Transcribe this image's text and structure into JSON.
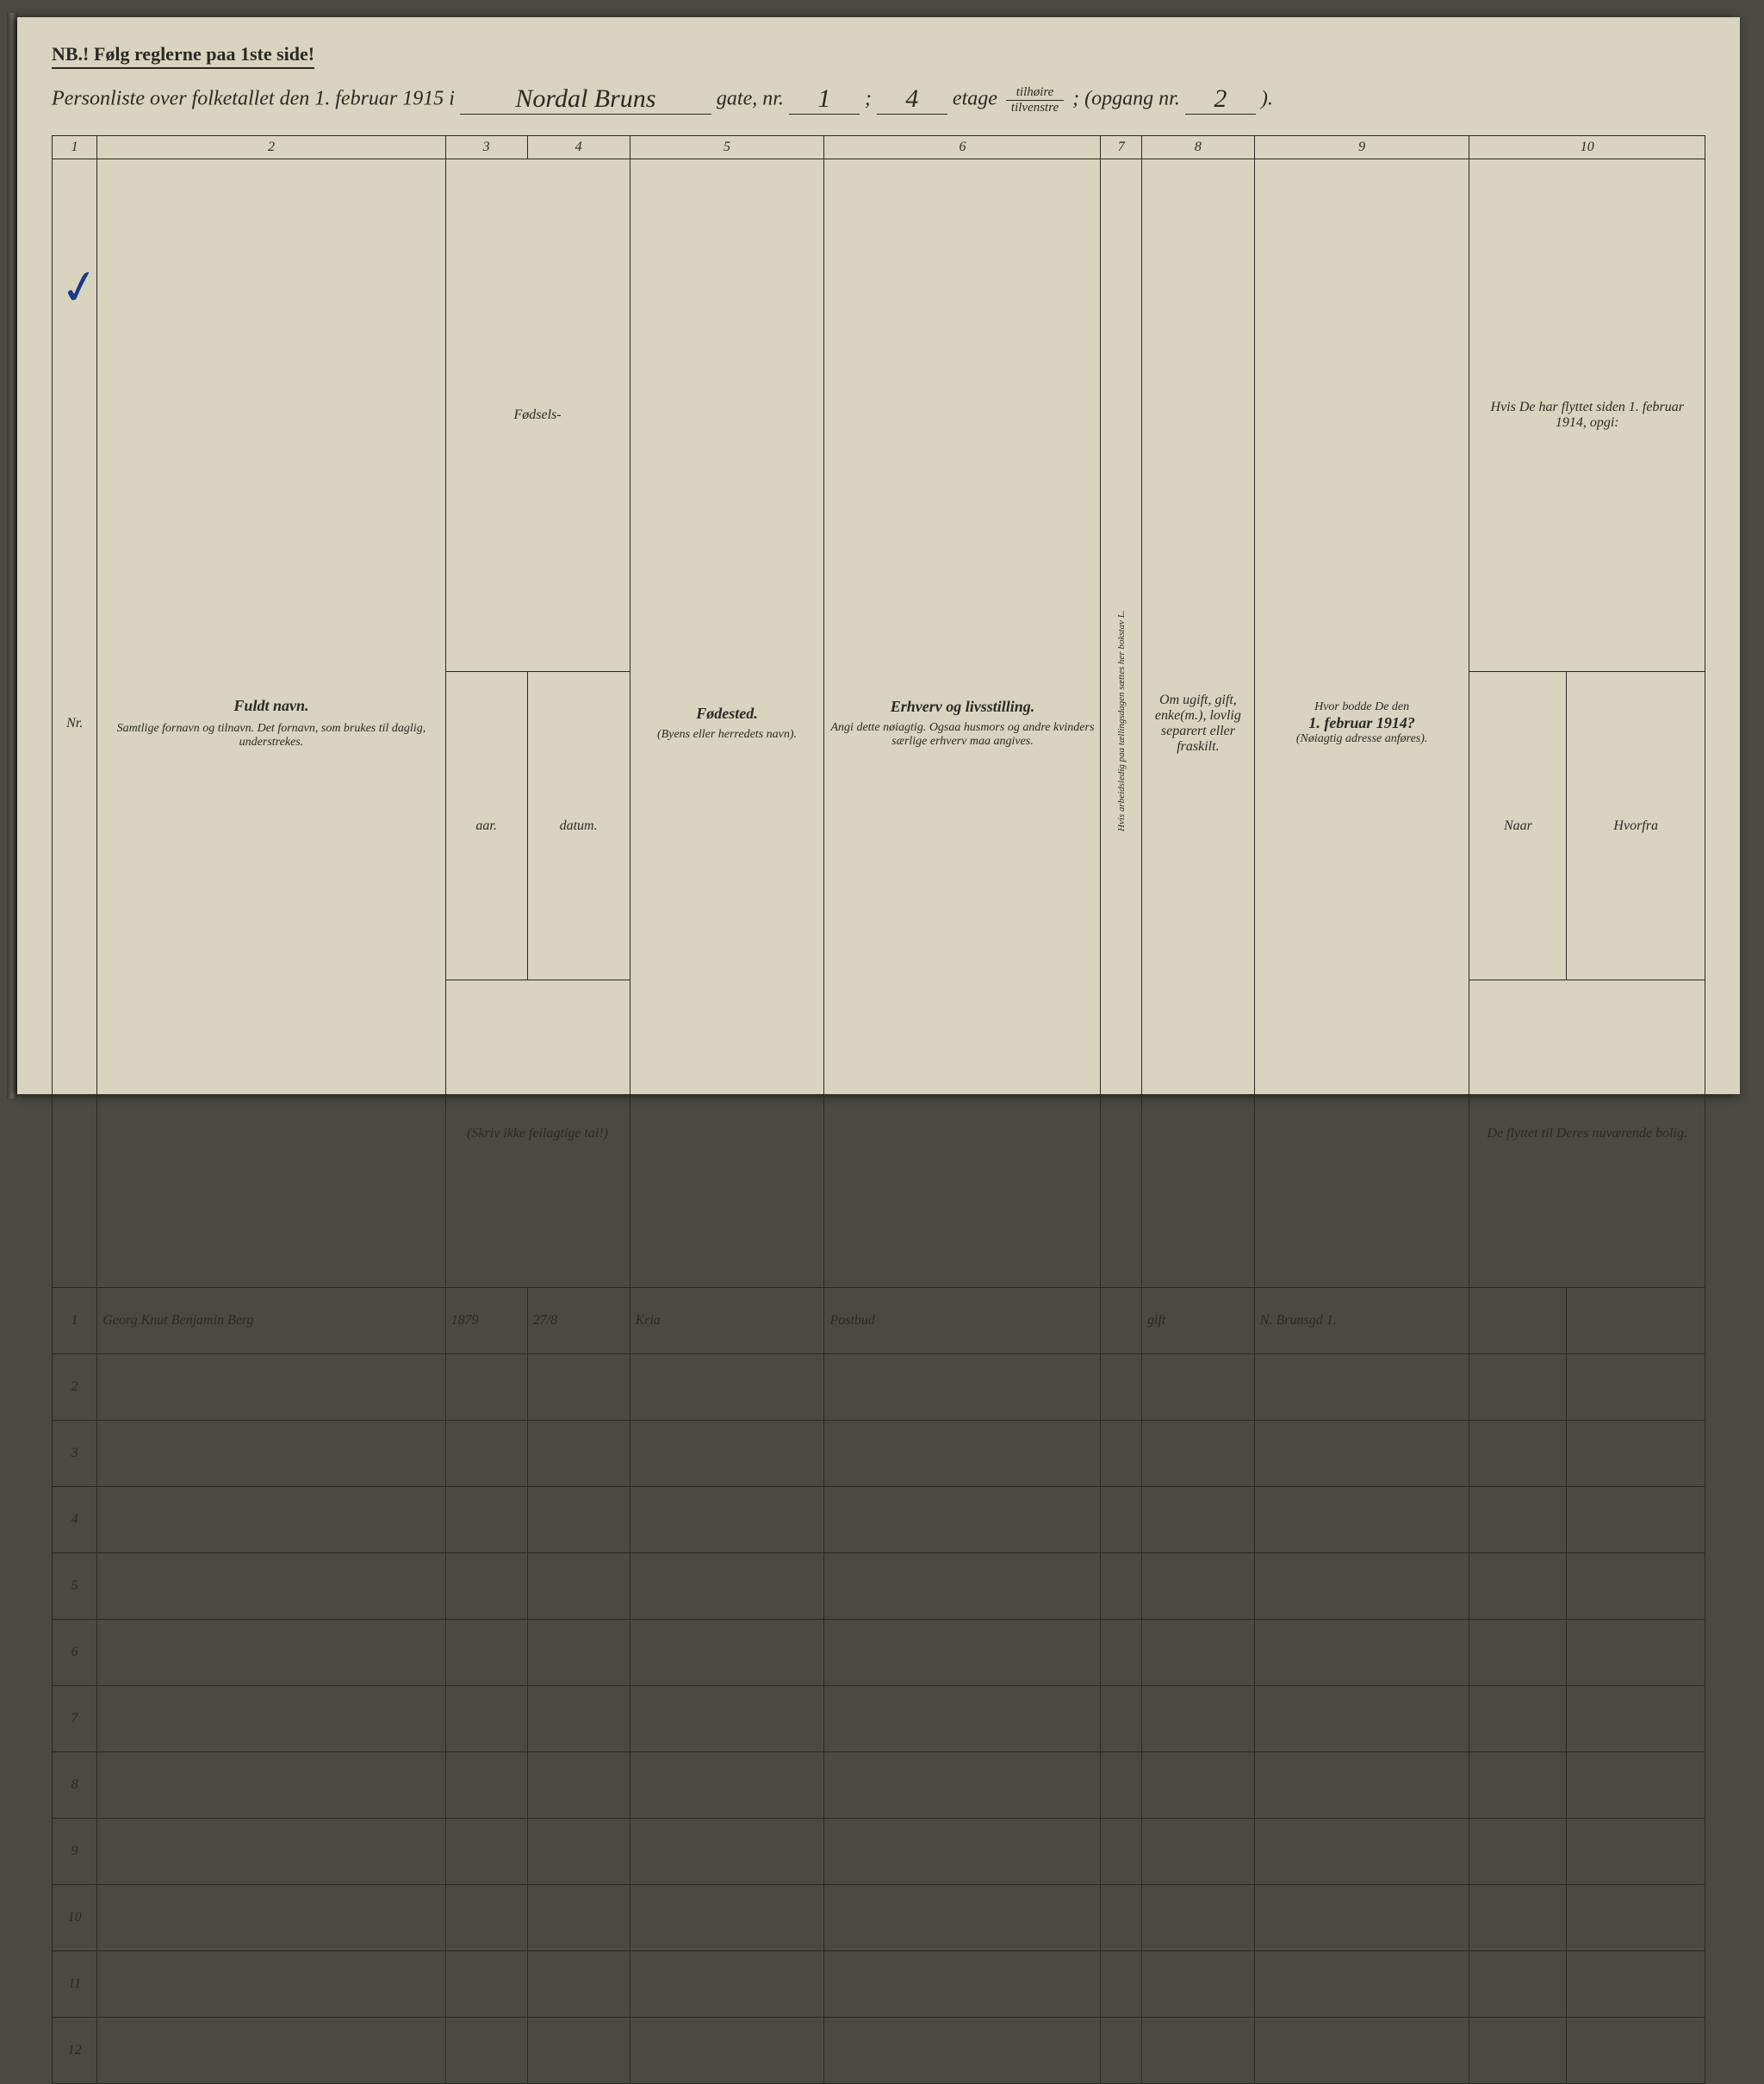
{
  "nb": "NB.! Følg reglerne paa 1ste side!",
  "header": {
    "prefix": "Personliste over folketallet den 1. februar 1915 i",
    "street": "Nordal Bruns",
    "gate": "gate, nr.",
    "nr": "1",
    "sep1": ";",
    "etage_val": "4",
    "etage_label": "etage",
    "frac_top": "tilhøire",
    "frac_bot": "tilvenstre",
    "sep2": "; (opgang nr.",
    "opgang": "2",
    "close": ")."
  },
  "columns": {
    "1": "1",
    "2": "2",
    "3": "3",
    "4": "4",
    "5": "5",
    "6": "6",
    "7": "7",
    "8": "8",
    "9": "9",
    "10": "10",
    "nr": "Nr.",
    "navn_main": "Fuldt navn.",
    "navn_sub": "Samtlige fornavn og tilnavn. Det fornavn, som brukes til daglig, understrekes.",
    "fodsels": "Fødsels-",
    "aar": "aar.",
    "datum": "datum.",
    "aar_sub": "(Skriv ikke feilagtige tal!)",
    "fodested": "Fødested.",
    "fodested_sub": "(Byens eller herredets navn).",
    "erhv_main": "Erhverv og livsstilling.",
    "erhv_sub": "Angi dette nøiagtig. Ogsaa husmors og andre kvinders særlige erhverv maa angives.",
    "col7": "Hvis arbeidsledig paa tællingsdagen sættes her bokstav L.",
    "col8": "Om ugift, gift, enke(m.), lovlig separert eller fraskilt.",
    "col9_main": "Hvor bodde De den 1. februar 1914?",
    "col9_sub": "(Nøiagtig adresse anføres).",
    "col10_main": "Hvis De har flyttet siden 1. februar 1914, opgi:",
    "col10_naar": "Naar",
    "col10_hvorfra": "Hvorfra",
    "col10_sub": "De flyttet til Deres nuværende bolig."
  },
  "rows": [
    {
      "n": "1",
      "navn": "Georg Knut Benjamin Berg",
      "aar": "1879",
      "datum": "27/8",
      "fsted": "Kria",
      "erhv": "Postbud",
      "c7": "",
      "c8": "gift",
      "c9": "N. Brunsgd 1.",
      "c10a": "",
      "c10b": ""
    },
    {
      "n": "2"
    },
    {
      "n": "3"
    },
    {
      "n": "4"
    },
    {
      "n": "5"
    },
    {
      "n": "6"
    },
    {
      "n": "7"
    },
    {
      "n": "8"
    },
    {
      "n": "9"
    },
    {
      "n": "10"
    },
    {
      "n": "11"
    },
    {
      "n": "12"
    }
  ]
}
